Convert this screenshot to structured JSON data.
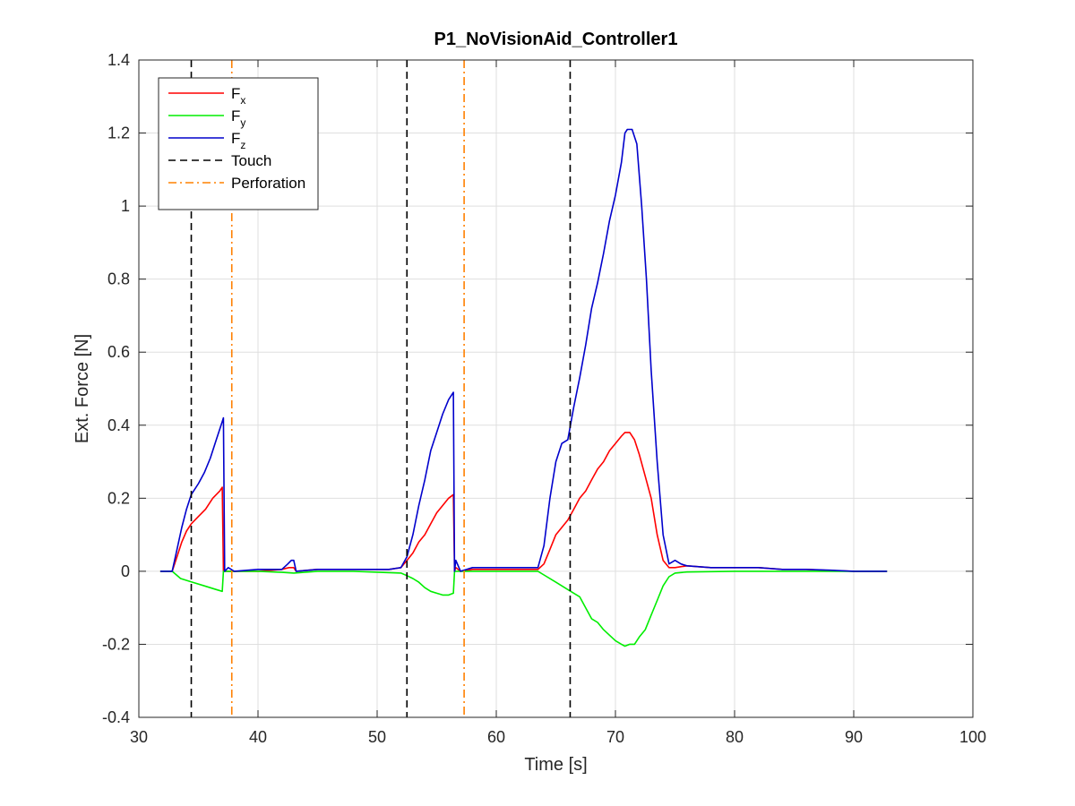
{
  "chart_data": {
    "type": "line",
    "title": "P1_NoVisionAid_Controller1",
    "xlabel": "Time [s]",
    "ylabel": "Ext. Force [N]",
    "xlim": [
      30,
      100
    ],
    "ylim": [
      -0.4,
      1.4
    ],
    "xticks": [
      30,
      40,
      50,
      60,
      70,
      80,
      90,
      100
    ],
    "yticks": [
      -0.4,
      -0.2,
      0,
      0.2,
      0.4,
      0.6,
      0.8,
      1,
      1.2,
      1.4
    ],
    "xtick_labels": [
      "30",
      "40",
      "50",
      "60",
      "70",
      "80",
      "90",
      "100"
    ],
    "ytick_labels": [
      "-0.4",
      "-0.2",
      "0",
      "0.2",
      "0.4",
      "0.6",
      "0.8",
      "1",
      "1.2",
      "1.4"
    ],
    "grid": true,
    "legend_position": "top-left",
    "series": [
      {
        "name": "Fx",
        "legend_main": "F",
        "legend_sub": "x",
        "color": "#ff0000",
        "style": "solid",
        "x": [
          31.8,
          32.8,
          33.2,
          33.6,
          34.0,
          34.4,
          35.0,
          35.6,
          36.2,
          36.8,
          37.0,
          37.1,
          37.5,
          38.0,
          40.0,
          42.0,
          42.6,
          43.0,
          43.2,
          45.0,
          48.0,
          51.0,
          52.0,
          52.5,
          53.0,
          53.5,
          54.0,
          54.5,
          55.0,
          55.5,
          56.0,
          56.4,
          56.5,
          56.6,
          57.0,
          58.0,
          60.0,
          62.0,
          63.5,
          64.0,
          64.5,
          65.0,
          65.5,
          66.0,
          66.5,
          67.0,
          67.5,
          68.0,
          68.5,
          69.0,
          69.5,
          70.0,
          70.5,
          70.8,
          71.2,
          71.6,
          72.0,
          72.5,
          73.0,
          73.5,
          74.0,
          74.5,
          75.0,
          76.0,
          78.0,
          80.0,
          82.0,
          84.0,
          86.0,
          88.0,
          90.0,
          92.8
        ],
        "values": [
          0.0,
          0.0,
          0.04,
          0.08,
          0.11,
          0.13,
          0.15,
          0.17,
          0.2,
          0.22,
          0.23,
          0.0,
          0.0,
          0.0,
          0.0,
          0.005,
          0.01,
          0.01,
          0.0,
          0.005,
          0.005,
          0.005,
          0.01,
          0.03,
          0.05,
          0.08,
          0.1,
          0.13,
          0.16,
          0.18,
          0.2,
          0.21,
          0.0,
          0.01,
          0.0,
          0.005,
          0.005,
          0.005,
          0.005,
          0.02,
          0.06,
          0.1,
          0.12,
          0.14,
          0.17,
          0.2,
          0.22,
          0.25,
          0.28,
          0.3,
          0.33,
          0.35,
          0.37,
          0.38,
          0.38,
          0.36,
          0.32,
          0.26,
          0.2,
          0.1,
          0.03,
          0.01,
          0.01,
          0.015,
          0.01,
          0.01,
          0.01,
          0.005,
          0.005,
          0.002,
          0.0,
          0.0
        ]
      },
      {
        "name": "Fy",
        "legend_main": "F",
        "legend_sub": "y",
        "color": "#00ee00",
        "style": "solid",
        "x": [
          31.8,
          32.8,
          33.5,
          34.5,
          35.5,
          36.5,
          37.0,
          37.1,
          37.5,
          38.0,
          40.0,
          42.0,
          43.0,
          45.0,
          48.0,
          52.0,
          52.5,
          53.0,
          53.5,
          54.0,
          54.5,
          55.0,
          55.5,
          56.0,
          56.4,
          56.5,
          57.0,
          60.0,
          62.0,
          63.5,
          64.0,
          65.0,
          66.0,
          67.0,
          67.5,
          68.0,
          68.5,
          69.0,
          69.5,
          70.0,
          70.5,
          70.8,
          71.2,
          71.6,
          72.0,
          72.5,
          73.0,
          73.5,
          74.0,
          74.5,
          75.0,
          76.0,
          80.0,
          85.0,
          88.0,
          90.0,
          92.8
        ],
        "values": [
          0.0,
          0.0,
          -0.02,
          -0.03,
          -0.04,
          -0.05,
          -0.055,
          0.0,
          0.0,
          0.0,
          0.0,
          -0.003,
          -0.005,
          0.0,
          0.0,
          -0.005,
          -0.012,
          -0.02,
          -0.03,
          -0.045,
          -0.055,
          -0.06,
          -0.065,
          -0.065,
          -0.06,
          0.0,
          0.0,
          0.0,
          0.0,
          0.0,
          -0.01,
          -0.03,
          -0.05,
          -0.07,
          -0.1,
          -0.13,
          -0.14,
          -0.16,
          -0.175,
          -0.19,
          -0.2,
          -0.205,
          -0.2,
          -0.2,
          -0.18,
          -0.16,
          -0.12,
          -0.08,
          -0.04,
          -0.015,
          -0.005,
          -0.002,
          0.0,
          0.0,
          0.0,
          0.0,
          0.0
        ]
      },
      {
        "name": "Fz",
        "legend_main": "F",
        "legend_sub": "z",
        "color": "#0000cc",
        "style": "solid",
        "x": [
          31.8,
          32.8,
          33.2,
          33.6,
          34.0,
          34.4,
          35.0,
          35.5,
          36.0,
          36.5,
          37.0,
          37.1,
          37.2,
          37.5,
          38.0,
          40.0,
          42.0,
          42.5,
          42.8,
          43.0,
          43.2,
          45.0,
          48.0,
          51.0,
          52.0,
          52.5,
          53.0,
          53.5,
          54.0,
          54.5,
          55.0,
          55.5,
          56.0,
          56.4,
          56.5,
          56.6,
          57.0,
          58.0,
          60.0,
          62.0,
          63.5,
          64.0,
          64.5,
          65.0,
          65.5,
          66.0,
          66.5,
          67.0,
          67.5,
          68.0,
          68.5,
          69.0,
          69.5,
          70.0,
          70.5,
          70.8,
          71.0,
          71.4,
          71.8,
          72.2,
          72.6,
          73.0,
          73.5,
          74.0,
          74.5,
          75.0,
          75.5,
          76.0,
          78.0,
          80.0,
          82.0,
          84.0,
          86.0,
          88.0,
          90.0,
          92.8
        ],
        "values": [
          0.0,
          0.0,
          0.06,
          0.12,
          0.17,
          0.21,
          0.24,
          0.27,
          0.31,
          0.36,
          0.41,
          0.42,
          0.0,
          0.01,
          0.0,
          0.005,
          0.005,
          0.02,
          0.03,
          0.03,
          0.0,
          0.005,
          0.005,
          0.005,
          0.01,
          0.04,
          0.1,
          0.18,
          0.25,
          0.33,
          0.38,
          0.43,
          0.47,
          0.49,
          0.0,
          0.03,
          0.0,
          0.01,
          0.01,
          0.01,
          0.01,
          0.07,
          0.2,
          0.3,
          0.35,
          0.36,
          0.45,
          0.53,
          0.62,
          0.72,
          0.79,
          0.87,
          0.96,
          1.03,
          1.12,
          1.2,
          1.21,
          1.21,
          1.17,
          1.0,
          0.8,
          0.55,
          0.3,
          0.1,
          0.02,
          0.03,
          0.02,
          0.015,
          0.01,
          0.01,
          0.01,
          0.005,
          0.005,
          0.003,
          0.0,
          0.0
        ]
      },
      {
        "name": "Touch",
        "legend_main": "Touch",
        "color": "#000000",
        "style": "dashed",
        "vlines": [
          34.4,
          52.5,
          66.2
        ]
      },
      {
        "name": "Perforation",
        "legend_main": "Perforation",
        "color": "#ff8000",
        "style": "dashdot",
        "vlines": [
          37.8,
          57.3
        ]
      }
    ]
  }
}
